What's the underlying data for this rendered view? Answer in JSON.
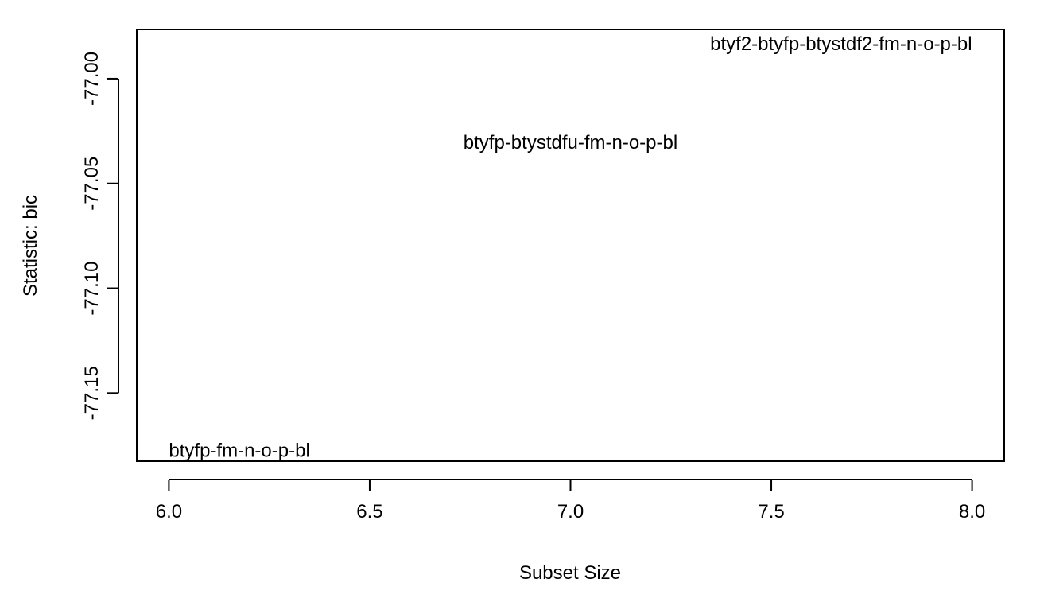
{
  "chart_data": {
    "type": "scatter",
    "xlabel": "Subset Size",
    "ylabel": "Statistic: bic",
    "xlim": [
      5.92,
      8.08
    ],
    "ylim": [
      -77.1825,
      -76.9765
    ],
    "x_ticks": [
      6.0,
      6.5,
      7.0,
      7.5,
      8.0
    ],
    "x_tick_labels": [
      "6.0",
      "6.5",
      "7.0",
      "7.5",
      "8.0"
    ],
    "y_ticks": [
      -77.0,
      -77.05,
      -77.1,
      -77.15
    ],
    "y_tick_labels": [
      "-77.00",
      "-77.05",
      "-77.10",
      "-77.15"
    ],
    "points": [
      {
        "x": 6.0,
        "y": -77.178,
        "label": "btyfp-fm-n-o-p-bl",
        "anchor": "left"
      },
      {
        "x": 7.0,
        "y": -77.031,
        "label": "btyfp-btystdfu-fm-n-o-p-bl",
        "anchor": "center"
      },
      {
        "x": 8.0,
        "y": -76.984,
        "label": "btyf2-btyfp-btystdf2-fm-n-o-p-bl",
        "anchor": "right"
      }
    ],
    "grid": false,
    "legend": "none"
  }
}
